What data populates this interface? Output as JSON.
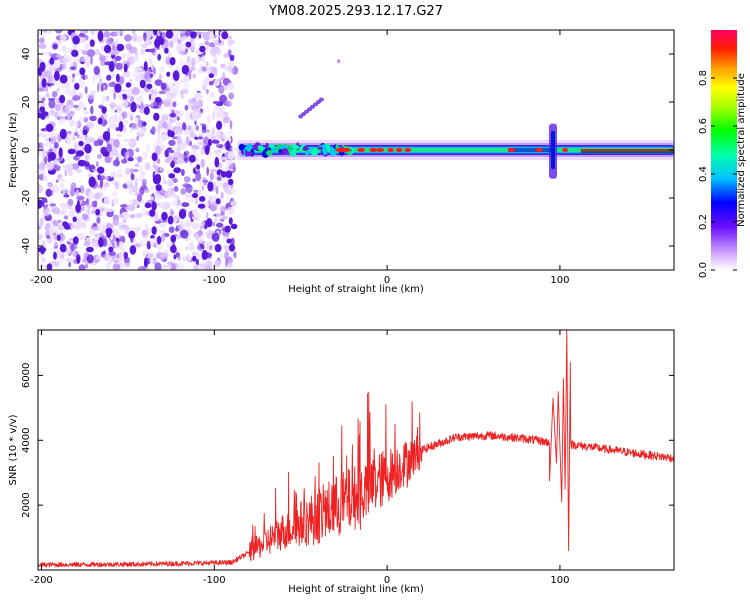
{
  "title": "YM08.2025.293.12.17.G27",
  "colors": {
    "snr_line": "#ee2222",
    "centre_line": "#d02020",
    "scatter": "#5a18d8",
    "axis": "#000000"
  },
  "chart_data": [
    {
      "type": "heatmap",
      "name": "spectrogram",
      "xlabel": "Height of straight line (km)",
      "ylabel": "Frequency (Hz)",
      "xlim": [
        -202,
        166
      ],
      "ylim": [
        -50,
        50
      ],
      "x_ticks": [
        -200,
        -100,
        0,
        100
      ],
      "y_ticks": [
        -40,
        -20,
        0,
        20,
        40
      ],
      "noise_region_x": [
        -202,
        -88
      ],
      "signal_start_x": -88,
      "signal_center_freq": 0,
      "spike_x": 96,
      "streak": {
        "x": [
          -50,
          -38
        ],
        "freq": [
          14,
          21
        ]
      },
      "colorbar": {
        "label": "Normalized spectral amplitude",
        "ticks": [
          0.0,
          0.2,
          0.4,
          0.6,
          0.8
        ],
        "tick_labels": [
          "0.0",
          "0.2",
          "0.4",
          "0.6",
          "0.8"
        ],
        "range": [
          0,
          1
        ]
      }
    },
    {
      "type": "line",
      "name": "snr",
      "xlabel": "Height of straight line (km)",
      "ylabel": "SNR (10 * v/v)",
      "xlim": [
        -202,
        166
      ],
      "ylim": [
        0,
        7400
      ],
      "x_ticks": [
        -200,
        -100,
        0,
        100
      ],
      "y_ticks": [
        2000,
        4000,
        6000
      ],
      "envelope": {
        "x": [
          -202,
          -140,
          -90,
          -78,
          -60,
          -40,
          -20,
          0,
          20,
          40,
          60,
          80,
          92,
          100,
          110,
          130,
          150,
          166
        ],
        "y": [
          160,
          180,
          230,
          600,
          1200,
          1650,
          2200,
          2900,
          3700,
          4100,
          4150,
          4050,
          3950,
          3900,
          3850,
          3700,
          3550,
          3450
        ]
      },
      "spike": {
        "x": [
          94,
          96,
          98,
          99,
          101,
          102,
          103,
          104,
          105,
          106
        ],
        "y": [
          2750,
          5300,
          3300,
          5500,
          2100,
          5900,
          2500,
          7400,
          600,
          6400
        ]
      }
    }
  ]
}
